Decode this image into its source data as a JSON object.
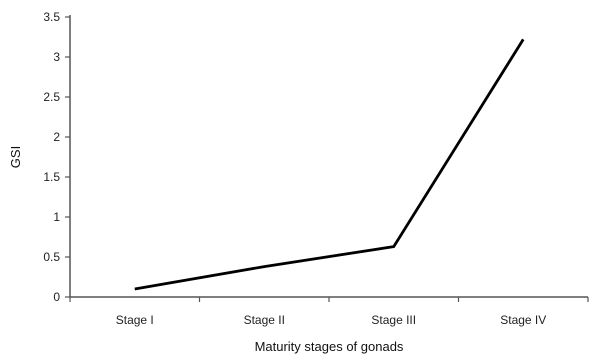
{
  "chart_data": {
    "type": "line",
    "categories": [
      "Stage I",
      "Stage II",
      "Stage III",
      "Stage IV"
    ],
    "series": [
      {
        "values": [
          0.1,
          0.38,
          0.63,
          3.22
        ],
        "color": "#000000"
      }
    ],
    "xlabel": "Maturity stages of gonads",
    "ylabel": "GSI",
    "ylim": [
      0,
      3.5
    ],
    "yticks": [
      0,
      0.5,
      1,
      1.5,
      2,
      2.5,
      3,
      3.5
    ],
    "ytick_labels": [
      "0",
      "0.5",
      "1",
      "1.5",
      "2",
      "2.5",
      "3",
      "3.5"
    ],
    "grid": false,
    "legend": "none"
  }
}
